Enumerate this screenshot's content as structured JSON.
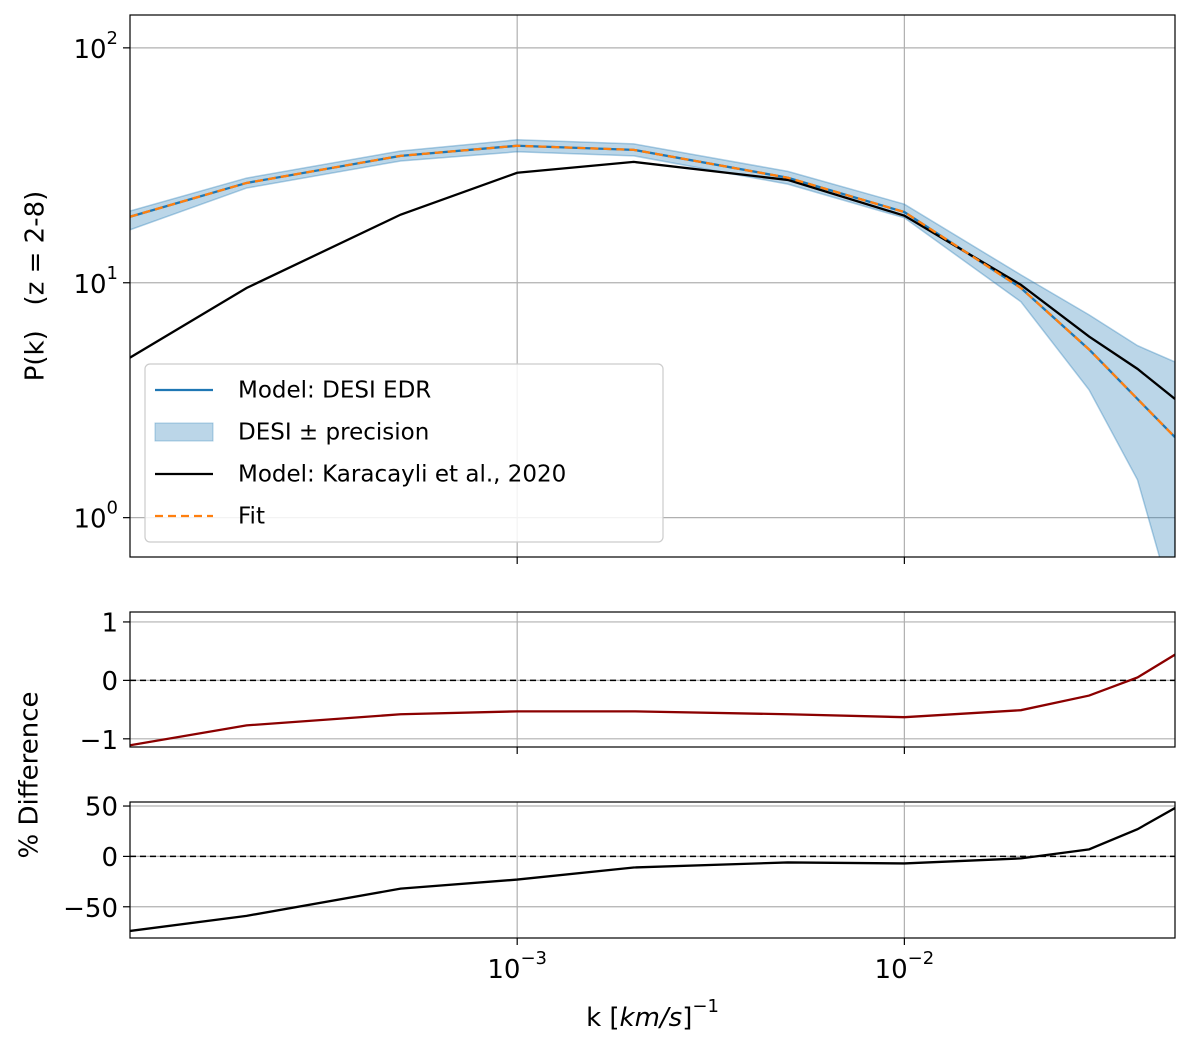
{
  "chart_data": [
    {
      "type": "line",
      "ylabel": "P(k)   (z = 2-8)",
      "log_x": true,
      "log_y": true,
      "grid": true,
      "legend": "lower left",
      "xlim": [
        0.0001,
        0.05
      ],
      "ylim": [
        0.68,
        138
      ],
      "yticks": [
        {
          "value": 1,
          "label": "10",
          "exponent": "0"
        },
        {
          "value": 10,
          "label": "10",
          "exponent": "1"
        },
        {
          "value": 100,
          "label": "10",
          "exponent": "2"
        }
      ],
      "x": [
        0.0001,
        0.0002,
        0.0005,
        0.001,
        0.002,
        0.005,
        0.01,
        0.02,
        0.03,
        0.04,
        0.05
      ],
      "series": [
        {
          "name": "Model: DESI EDR",
          "color": "#1f77b4",
          "values": [
            19.1,
            26.6,
            34.7,
            38.3,
            36.8,
            28.0,
            20.0,
            9.5,
            5.2,
            3.2,
            2.2
          ]
        },
        {
          "name": "DESI ± precision",
          "color": "#1f77b4",
          "kind": "band",
          "lower": [
            16.8,
            25.3,
            33.0,
            36.1,
            34.7,
            26.3,
            18.9,
            8.3,
            3.5,
            1.45,
            0.4
          ],
          "upper": [
            20.2,
            27.9,
            36.4,
            40.6,
            39.0,
            29.8,
            21.6,
            10.8,
            7.3,
            5.4,
            4.6
          ]
        },
        {
          "name": "Model: Karacayli et al., 2020",
          "color": "#000000",
          "values": [
            4.8,
            9.5,
            19.5,
            29.4,
            32.7,
            27.4,
            19.3,
            9.8,
            5.9,
            4.3,
            3.2
          ]
        },
        {
          "name": "Fit",
          "color": "#ff7f0e",
          "dashed": true,
          "values": [
            19.1,
            26.6,
            34.7,
            38.3,
            36.8,
            28.0,
            20.0,
            9.5,
            5.2,
            3.2,
            2.2
          ]
        }
      ]
    },
    {
      "type": "line",
      "ylabel": "% Difference",
      "log_x": true,
      "grid": true,
      "hline": 0,
      "xlim": [
        0.0001,
        0.05
      ],
      "ylim": [
        -1.14,
        1.17
      ],
      "yticks": [
        {
          "value": -1,
          "label": "−1"
        },
        0,
        1
      ],
      "x": [
        0.0001,
        0.0002,
        0.0005,
        0.001,
        0.002,
        0.005,
        0.01,
        0.02,
        0.03,
        0.04,
        0.05
      ],
      "series": [
        {
          "color": "#8b0000",
          "values": [
            -1.11,
            -0.77,
            -0.58,
            -0.53,
            -0.53,
            -0.58,
            -0.63,
            -0.51,
            -0.26,
            0.05,
            0.44
          ]
        }
      ]
    },
    {
      "type": "line",
      "log_x": true,
      "grid": true,
      "hline": 0,
      "xlabel": {
        "text": "k [",
        "unit": "km/s",
        "close": "]",
        "exponent": "−1"
      },
      "xlim": [
        0.0001,
        0.05
      ],
      "ylim": [
        -81,
        54
      ],
      "xticks": [
        {
          "value": 0.001,
          "label": "10",
          "exponent": "−3"
        },
        {
          "value": 0.01,
          "label": "10",
          "exponent": "−2"
        }
      ],
      "yticks": [
        {
          "value": -50,
          "label": "−50"
        },
        0,
        50
      ],
      "x": [
        0.0001,
        0.0002,
        0.0005,
        0.001,
        0.002,
        0.005,
        0.01,
        0.02,
        0.03,
        0.04,
        0.05
      ],
      "series": [
        {
          "color": "#000000",
          "values": [
            -74,
            -59,
            -32,
            -23,
            -11,
            -6,
            -7,
            -2,
            7,
            27,
            48
          ]
        }
      ]
    }
  ]
}
